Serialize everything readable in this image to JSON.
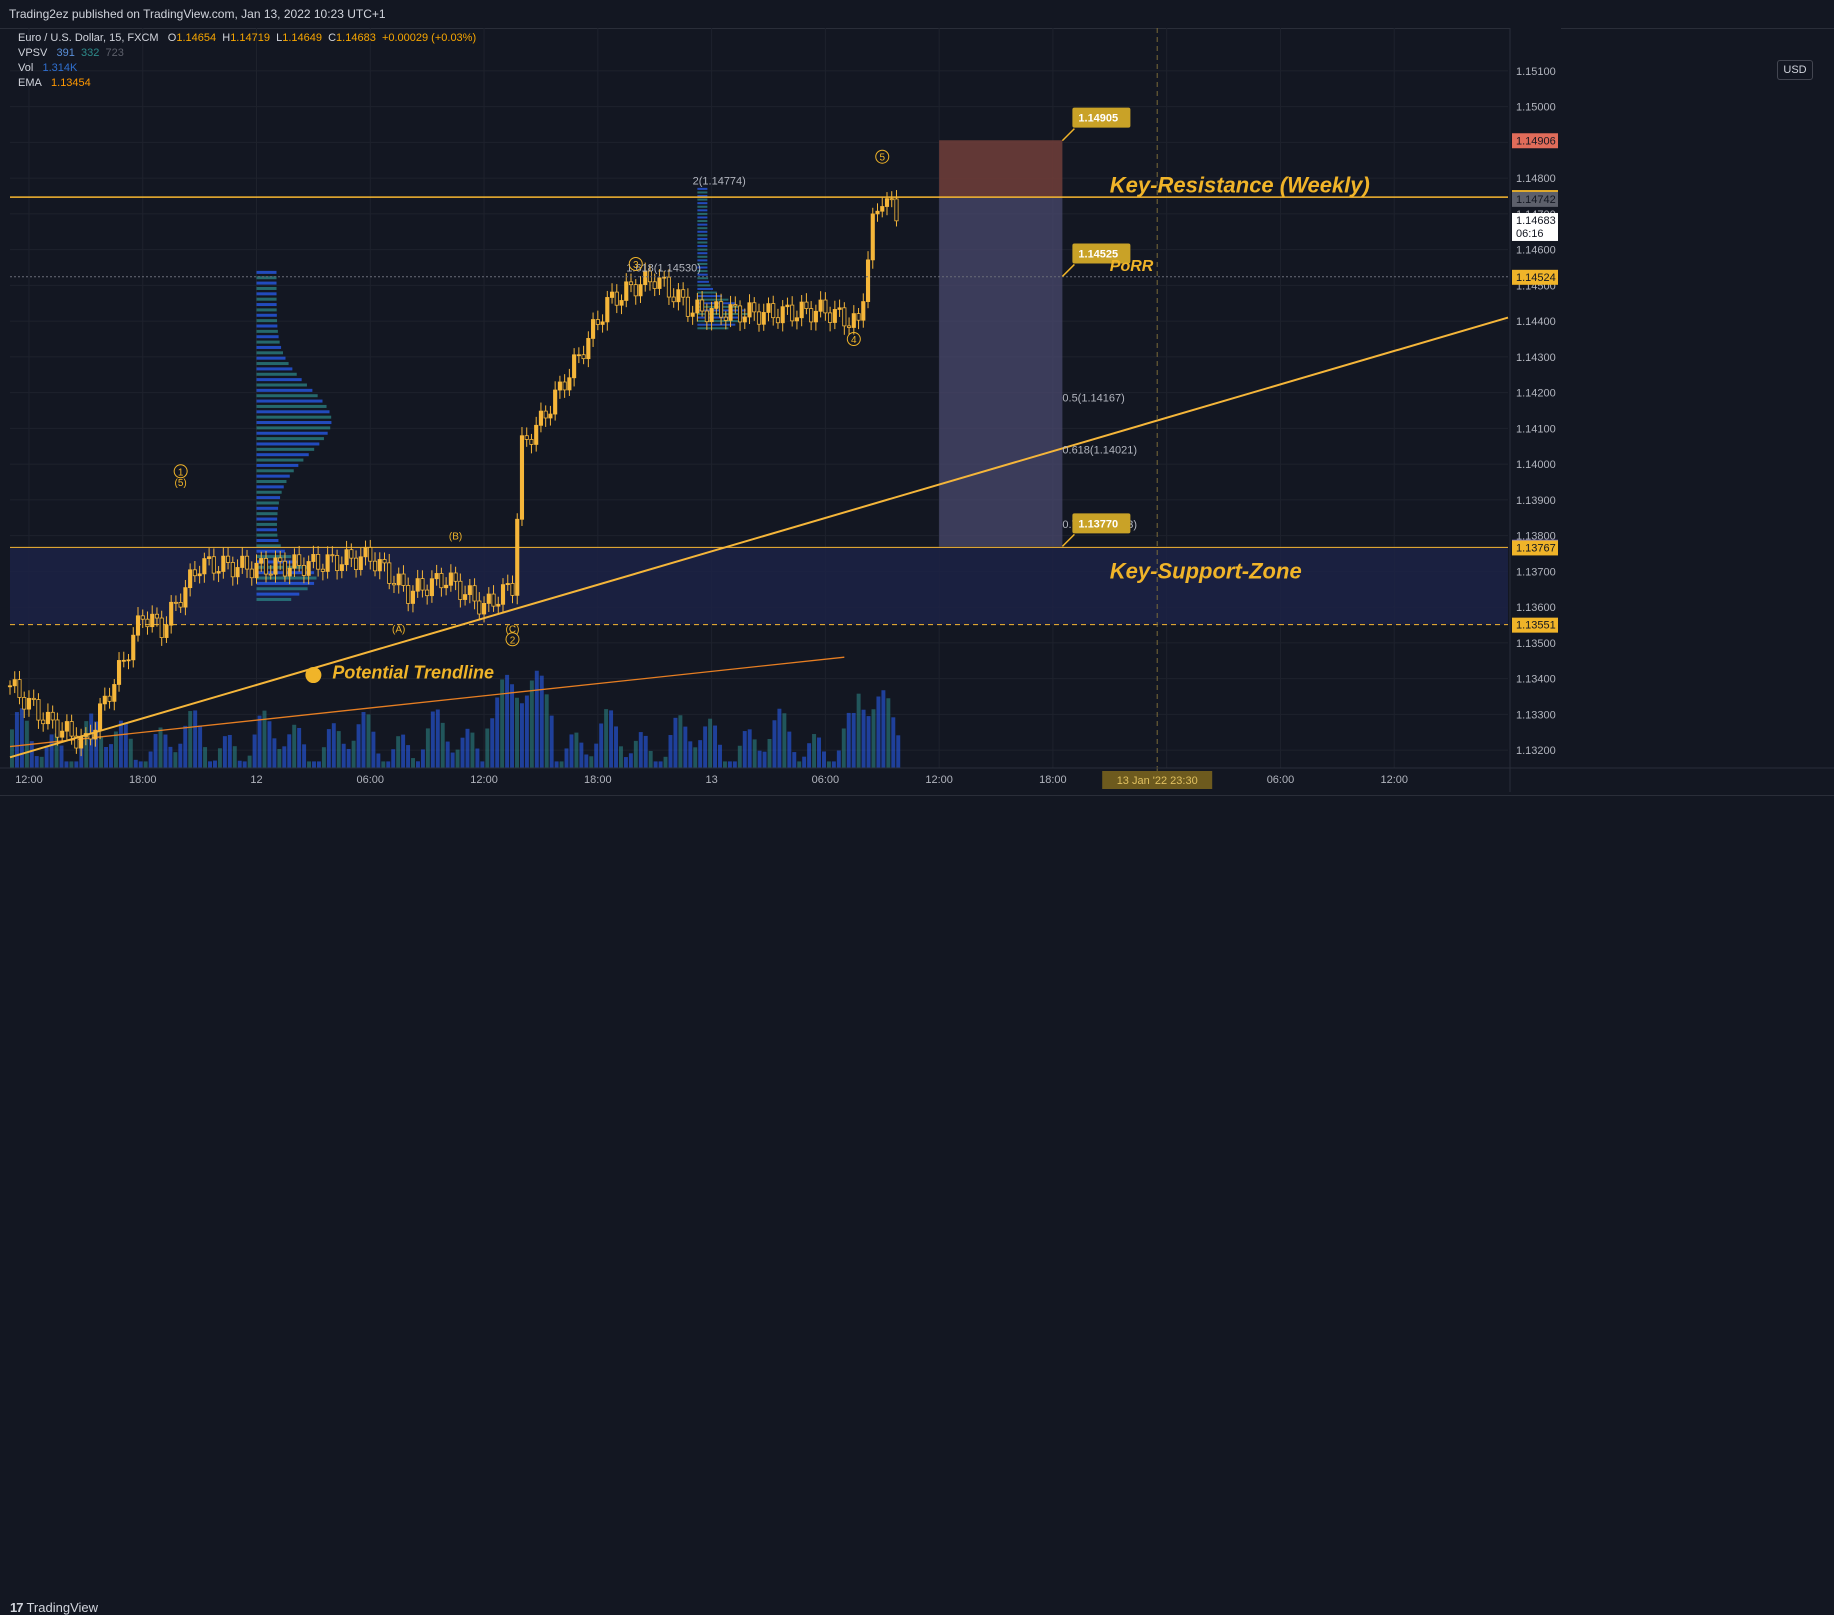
{
  "header": {
    "published": "Trading2ez published on TradingView.com, Jan 13, 2022 10:23 UTC+1"
  },
  "legend": {
    "symbol": "Euro / U.S. Dollar, 15, FXCM",
    "o_label": "O",
    "o": "1.14654",
    "h_label": "H",
    "h": "1.14719",
    "l_label": "L",
    "l": "1.14649",
    "c_label": "C",
    "c": "1.14683",
    "chg": "+0.00029 (+0.03%)",
    "vpsv_label": "VPSV",
    "vpsv_1": "391",
    "vpsv_2": "332",
    "vpsv_3": "723",
    "vol_label": "Vol",
    "vol": "1.314K",
    "ema_label": "EMA",
    "ema": "1.13454"
  },
  "currency": "USD",
  "footer": {
    "brand": "TradingView",
    "brand_icon": "tradingview-logo-icon"
  },
  "colors": {
    "bg": "#131722",
    "grid": "#1e222d",
    "up": "#f5b63a",
    "accent": "#f0b429",
    "resistance": "#f7b731",
    "trend": "#f5b63a",
    "ema": "#e67e22",
    "vol_blue": "#2962ff",
    "vol_teal": "#2e8b8b",
    "red_zone": "#6b3c38",
    "purple_zone": "#4a4a6e",
    "support_zone": "#1c2245"
  },
  "chart_data": {
    "type": "candlestick",
    "title": "Euro / U.S. Dollar, 15, FXCM",
    "y_range": [
      1.1315,
      1.1522
    ],
    "y_ticks": [
      "1.15100",
      "1.15000",
      "1.14900",
      "1.14800",
      "1.14700",
      "1.14600",
      "1.14500",
      "1.14400",
      "1.14300",
      "1.14200",
      "1.14100",
      "1.14000",
      "1.13900",
      "1.13800",
      "1.13700",
      "1.13600",
      "1.13500",
      "1.13400",
      "1.13300",
      "1.13200"
    ],
    "y_tick_values": [
      1.151,
      1.15,
      1.149,
      1.148,
      1.147,
      1.146,
      1.145,
      1.144,
      1.143,
      1.142,
      1.141,
      1.14,
      1.139,
      1.138,
      1.137,
      1.136,
      1.135,
      1.134,
      1.133,
      1.132
    ],
    "x_axis": {
      "start": "2022-01-11 11:00",
      "end": "2022-01-14 18:00",
      "timezone": "UTC+1"
    },
    "x_ticks": [
      {
        "time": "2022-01-11 12:00",
        "label": "12:00"
      },
      {
        "time": "2022-01-11 18:00",
        "label": "18:00"
      },
      {
        "time": "2022-01-12 00:00",
        "label": "12"
      },
      {
        "time": "2022-01-12 06:00",
        "label": "06:00"
      },
      {
        "time": "2022-01-12 12:00",
        "label": "12:00"
      },
      {
        "time": "2022-01-12 18:00",
        "label": "18:00"
      },
      {
        "time": "2022-01-13 00:00",
        "label": "13"
      },
      {
        "time": "2022-01-13 06:00",
        "label": "06:00"
      },
      {
        "time": "2022-01-13 12:00",
        "label": "12:00"
      },
      {
        "time": "2022-01-13 18:00",
        "label": "18:00"
      },
      {
        "time": "2022-01-14 00:00",
        "label": "14"
      },
      {
        "time": "2022-01-14 06:00",
        "label": "06:00"
      },
      {
        "time": "2022-01-14 12:00",
        "label": "12:00"
      }
    ],
    "cursor_time_label": "13 Jan '22   23:30",
    "cursor_time": "2022-01-13 23:30",
    "price_path": [
      [
        "2022-01-11 11:00",
        1.1338
      ],
      [
        "2022-01-11 13:00",
        1.1328
      ],
      [
        "2022-01-11 15:00",
        1.1322
      ],
      [
        "2022-01-11 17:00",
        1.1345
      ],
      [
        "2022-01-11 18:00",
        1.1358
      ],
      [
        "2022-01-11 19:00",
        1.1354
      ],
      [
        "2022-01-11 21:00",
        1.1372
      ],
      [
        "2022-01-12 00:00",
        1.1371
      ],
      [
        "2022-01-12 03:00",
        1.1372
      ],
      [
        "2022-01-12 06:00",
        1.1374
      ],
      [
        "2022-01-12 08:00",
        1.1364
      ],
      [
        "2022-01-12 10:00",
        1.1368
      ],
      [
        "2022-01-12 12:00",
        1.136
      ],
      [
        "2022-01-12 13:30",
        1.1366
      ],
      [
        "2022-01-12 14:00",
        1.1405
      ],
      [
        "2022-01-12 15:00",
        1.1412
      ],
      [
        "2022-01-12 17:00",
        1.143
      ],
      [
        "2022-01-12 18:30",
        1.1445
      ],
      [
        "2022-01-12 20:00",
        1.145
      ],
      [
        "2022-01-12 21:00",
        1.1452
      ],
      [
        "2022-01-12 23:00",
        1.1443
      ],
      [
        "2022-01-13 03:00",
        1.1442
      ],
      [
        "2022-01-13 06:00",
        1.1443
      ],
      [
        "2022-01-13 07:45",
        1.1439
      ],
      [
        "2022-01-13 08:30",
        1.1467
      ],
      [
        "2022-01-13 09:00",
        1.1475
      ],
      [
        "2022-01-13 10:00",
        1.1468
      ]
    ],
    "volume_scale_max": 100,
    "price_labels": [
      {
        "label": "1.14906",
        "value": 1.14906,
        "color": "#e06c5a"
      },
      {
        "label": "1.14747",
        "value": 1.14747,
        "color": "#f0b429"
      },
      {
        "label": "1.14742",
        "value": 1.14742,
        "color": "#5d606b"
      },
      {
        "label": "1.14683",
        "value": 1.14683,
        "color": "#ffffff",
        "sub": "06:16"
      },
      {
        "label": "1.14524",
        "value": 1.14524,
        "color": "#f0b429"
      },
      {
        "label": "1.13769",
        "value": 1.13769,
        "color": "#7e73c8"
      },
      {
        "label": "1.13767",
        "value": 1.13767,
        "color": "#f0b429"
      },
      {
        "label": "1.13551",
        "value": 1.13551,
        "color": "#f0b429"
      }
    ],
    "resistance_level": 1.14747,
    "support_zone": [
      1.13551,
      1.13767
    ],
    "porr_level": 1.14524,
    "trade_box": {
      "start": "2022-01-13 12:00",
      "end": "2022-01-13 18:30",
      "stop": 1.14906,
      "entry": 1.14747,
      "target": 1.13769
    },
    "box_callouts": [
      {
        "label": "1.14905",
        "value": 1.14905
      },
      {
        "label": "1.14525",
        "value": 1.14525
      },
      {
        "label": "1.13770",
        "value": 1.1377
      }
    ],
    "fib_labels": [
      {
        "label": "2(1.14774)",
        "value": 1.14774,
        "time": "2022-01-12 23:00"
      },
      {
        "label": "1.618(1.14530)",
        "value": 1.1453,
        "time": "2022-01-12 19:30"
      },
      {
        "label": "0.5(1.14167)",
        "value": 1.14167,
        "time": "2022-01-13 18:30"
      },
      {
        "label": "0.618(1.14021)",
        "value": 1.14021,
        "time": "2022-01-13 18:30"
      },
      {
        "label": "0.786(1.13813)",
        "value": 1.13813,
        "time": "2022-01-13 18:30"
      }
    ],
    "trendline": {
      "from": [
        "2022-01-11 11:00",
        1.1318
      ],
      "to": [
        "2022-01-14 18:00",
        1.1441
      ]
    },
    "ema": {
      "label": "EMA",
      "value": 1.13454,
      "from": [
        "2022-01-11 11:00",
        1.1321
      ],
      "to": [
        "2022-01-13 07:00",
        1.1346
      ]
    },
    "wave_labels": [
      {
        "label": "1",
        "circled": true,
        "time": "2022-01-11 20:00",
        "value": 1.1398
      },
      {
        "label": "(5)",
        "circled": false,
        "time": "2022-01-11 20:00",
        "value": 1.1395
      },
      {
        "label": "(B)",
        "circled": false,
        "time": "2022-01-12 10:30",
        "value": 1.138
      },
      {
        "label": "(A)",
        "circled": false,
        "time": "2022-01-12 07:30",
        "value": 1.1354
      },
      {
        "label": "(C)",
        "circled": false,
        "time": "2022-01-12 13:30",
        "value": 1.1354
      },
      {
        "label": "2",
        "circled": true,
        "time": "2022-01-12 13:30",
        "value": 1.1351
      },
      {
        "label": "3",
        "circled": true,
        "time": "2022-01-12 20:00",
        "value": 1.1456
      },
      {
        "label": "4",
        "circled": true,
        "time": "2022-01-13 07:30",
        "value": 1.1435
      },
      {
        "label": "5",
        "circled": true,
        "time": "2022-01-13 09:00",
        "value": 1.1486
      }
    ],
    "annotations": [
      {
        "text": "Key-Resistance (Weekly)",
        "time": "2022-01-13 21:00",
        "value": 1.1476
      },
      {
        "text": "PoRR",
        "time": "2022-01-13 21:00",
        "value": 1.1454
      },
      {
        "text": "Key-Support-Zone",
        "time": "2022-01-13 21:00",
        "value": 1.1368
      },
      {
        "text": "Potential Trendline",
        "time": "2022-01-12 04:00",
        "value": 1.134
      }
    ]
  }
}
